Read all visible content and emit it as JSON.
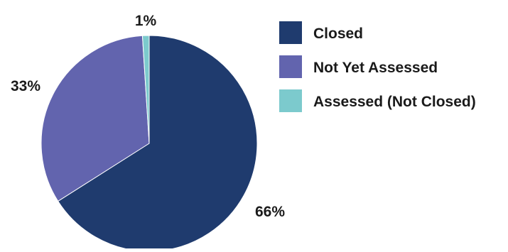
{
  "chart_data": {
    "type": "pie",
    "slices": [
      {
        "name": "Closed",
        "value": 66,
        "label": "66%",
        "color": "#1f3b6e"
      },
      {
        "name": "Not Yet Assessed",
        "value": 33,
        "label": "33%",
        "color": "#6264ae"
      },
      {
        "name": "Assessed (Not Closed)",
        "value": 1,
        "label": "1%",
        "color": "#7ccacd"
      }
    ],
    "start_angle_deg": 0,
    "direction": "clockwise",
    "legend_position": "right",
    "title": ""
  }
}
